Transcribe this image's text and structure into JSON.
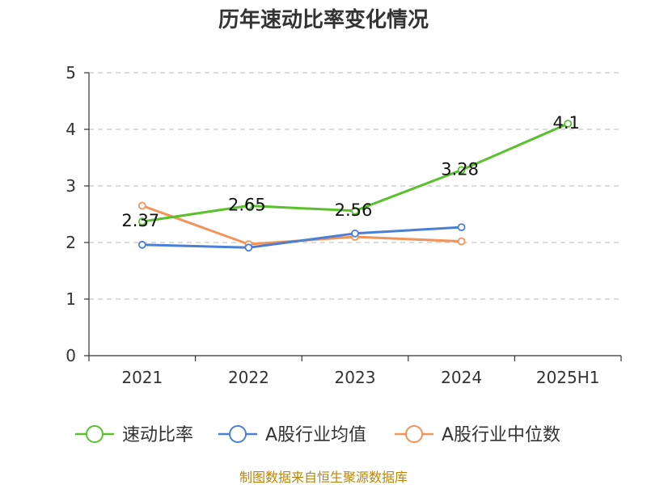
{
  "chart_data": {
    "type": "line",
    "title": "历年速动比率变化情况",
    "categories": [
      "2021",
      "2022",
      "2023",
      "2024",
      "2025H1"
    ],
    "ylim": [
      0,
      5
    ],
    "yticks": [
      0,
      1,
      2,
      3,
      4,
      5
    ],
    "grid": true,
    "legend_position": "bottom",
    "series": [
      {
        "name": "速动比率",
        "color": "#5ac02c",
        "values": [
          2.37,
          2.65,
          2.56,
          3.28,
          4.1
        ],
        "labels": [
          "2.37",
          "2.65",
          "2.56",
          "3.28",
          "4.1"
        ]
      },
      {
        "name": "A股行业均值",
        "color": "#4a7fd6",
        "values": [
          1.96,
          1.91,
          2.16,
          2.27,
          null
        ]
      },
      {
        "name": "A股行业中位数",
        "color": "#f2935a",
        "values": [
          2.65,
          1.97,
          2.1,
          2.02,
          null
        ]
      }
    ]
  },
  "source": "制图数据来自恒生聚源数据库"
}
